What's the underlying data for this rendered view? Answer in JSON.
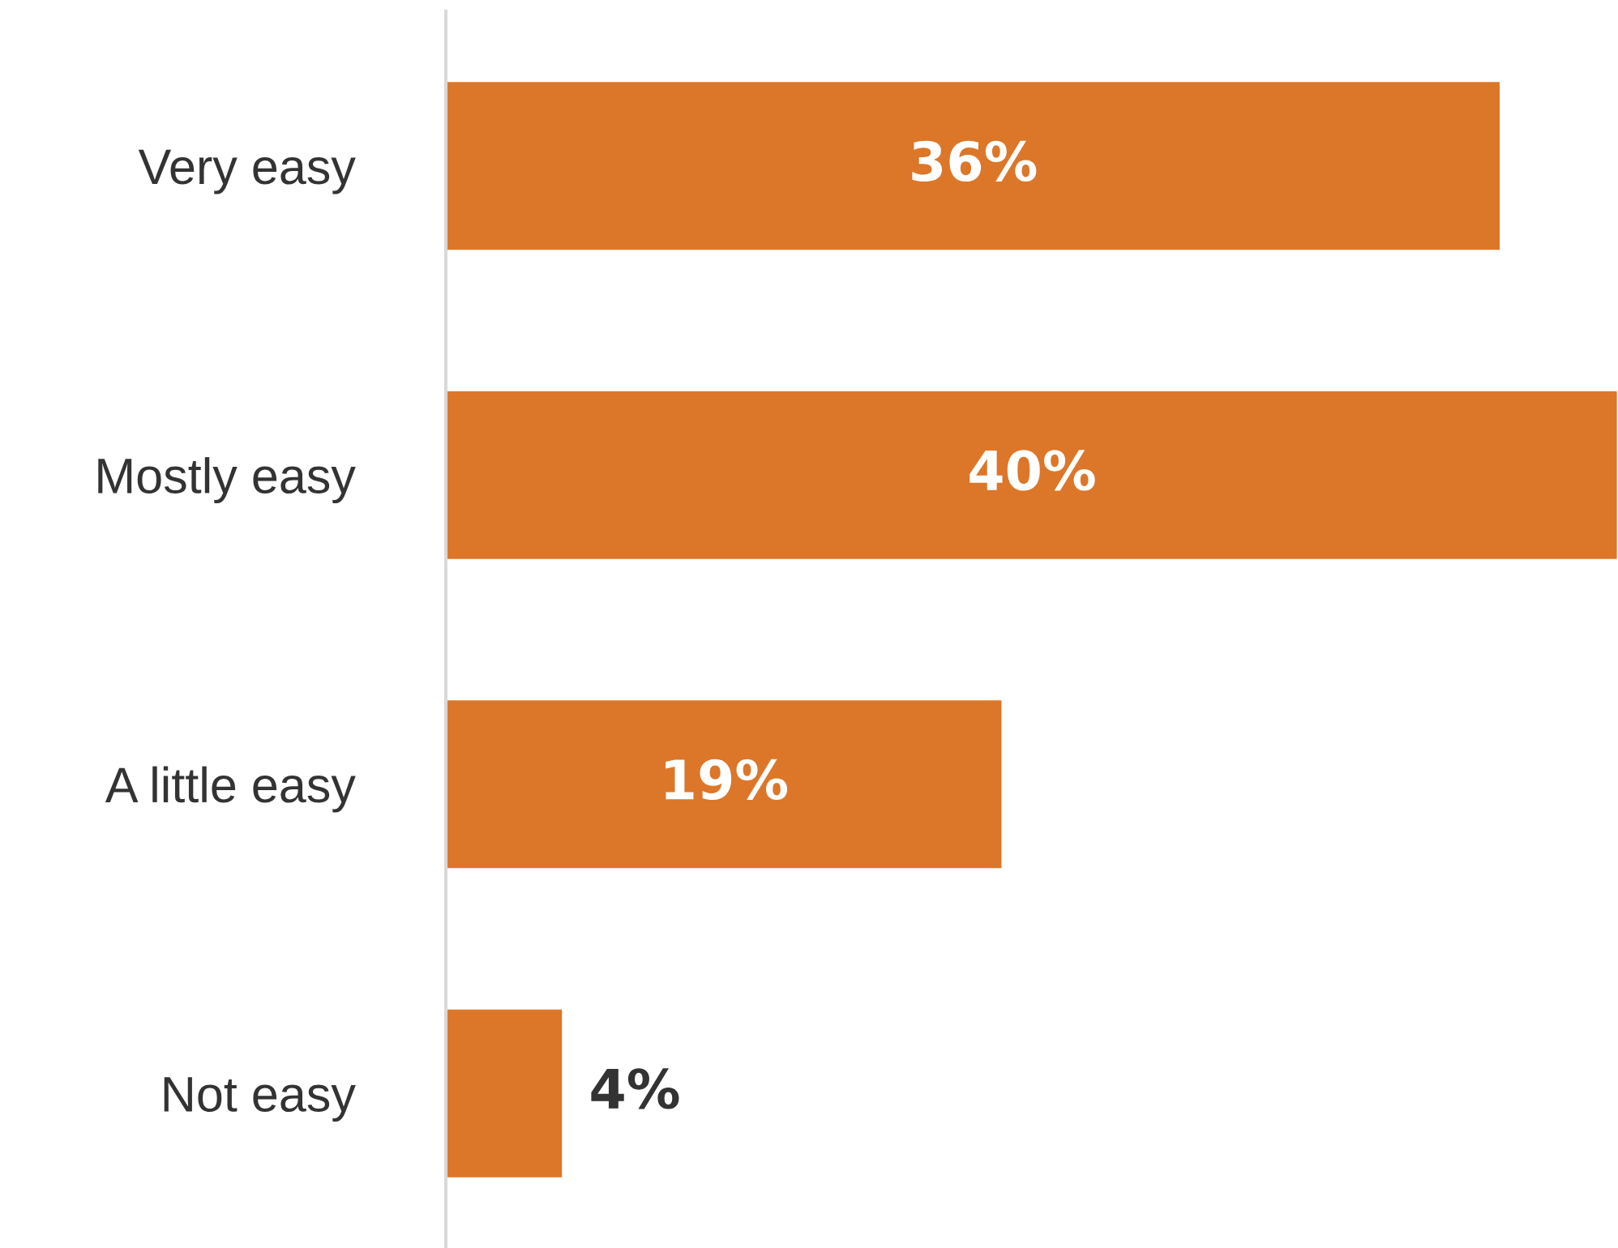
{
  "chart_data": {
    "type": "bar",
    "orientation": "horizontal",
    "categories": [
      "Very easy",
      "Mostly easy",
      "A little easy",
      "Not easy"
    ],
    "values": [
      36,
      40,
      19,
      4
    ],
    "color": "#dc7629",
    "data_labels": true,
    "value_labels": [
      "36%",
      "40%",
      "19%",
      "4%"
    ],
    "tick_labels": "y",
    "grid": false,
    "legend": false
  }
}
